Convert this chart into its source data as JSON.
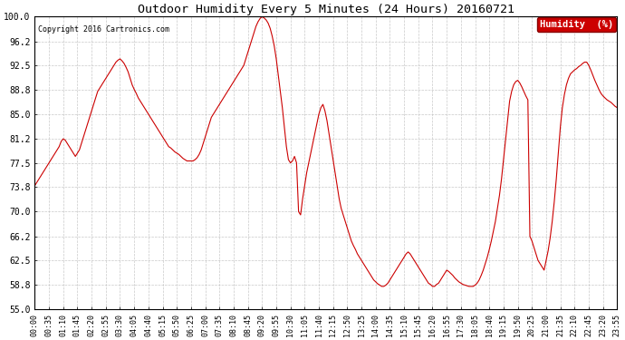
{
  "title": "Outdoor Humidity Every 5 Minutes (24 Hours) 20160721",
  "copyright": "Copyright 2016 Cartronics.com",
  "ylim": [
    55.0,
    100.0
  ],
  "yticks": [
    55.0,
    58.8,
    62.5,
    66.2,
    70.0,
    73.8,
    77.5,
    81.2,
    85.0,
    88.8,
    92.5,
    96.2,
    100.0
  ],
  "line_color": "#cc0000",
  "background_color": "#ffffff",
  "grid_color": "#bbbbbb",
  "legend_bg": "#cc0000",
  "legend_text": "Humidity  (%)",
  "humidity_data": [
    74.0,
    74.5,
    75.0,
    75.5,
    76.0,
    76.5,
    77.0,
    77.5,
    78.0,
    78.5,
    79.0,
    79.5,
    80.0,
    80.8,
    81.2,
    81.0,
    80.5,
    80.0,
    79.5,
    79.0,
    78.5,
    79.0,
    79.5,
    80.5,
    81.5,
    82.5,
    83.5,
    84.5,
    85.5,
    86.5,
    87.5,
    88.5,
    89.0,
    89.5,
    90.0,
    90.5,
    91.0,
    91.5,
    92.0,
    92.5,
    93.0,
    93.3,
    93.5,
    93.2,
    92.8,
    92.2,
    91.5,
    90.5,
    89.5,
    88.8,
    88.2,
    87.5,
    87.0,
    86.5,
    86.0,
    85.5,
    85.0,
    84.5,
    84.0,
    83.5,
    83.0,
    82.5,
    82.0,
    81.5,
    81.0,
    80.5,
    80.0,
    79.8,
    79.5,
    79.2,
    79.0,
    78.8,
    78.5,
    78.2,
    78.0,
    77.8,
    77.8,
    77.8,
    77.8,
    78.0,
    78.3,
    78.8,
    79.5,
    80.5,
    81.5,
    82.5,
    83.5,
    84.5,
    85.0,
    85.5,
    86.0,
    86.5,
    87.0,
    87.5,
    88.0,
    88.5,
    89.0,
    89.5,
    90.0,
    90.5,
    91.0,
    91.5,
    92.0,
    92.5,
    93.5,
    94.5,
    95.5,
    96.5,
    97.5,
    98.5,
    99.2,
    99.7,
    100.0,
    99.8,
    99.5,
    99.0,
    98.2,
    97.0,
    95.5,
    93.5,
    91.0,
    88.5,
    86.0,
    83.0,
    80.0,
    78.0,
    77.5,
    77.8,
    78.5,
    77.5,
    70.0,
    69.5,
    72.0,
    74.0,
    76.0,
    77.5,
    79.0,
    80.5,
    82.0,
    83.5,
    85.0,
    86.0,
    86.5,
    85.5,
    84.0,
    82.0,
    80.0,
    78.0,
    76.0,
    74.0,
    72.0,
    70.5,
    69.5,
    68.5,
    67.5,
    66.5,
    65.5,
    64.8,
    64.2,
    63.5,
    63.0,
    62.5,
    62.0,
    61.5,
    61.0,
    60.5,
    60.0,
    59.5,
    59.2,
    58.9,
    58.7,
    58.5,
    58.5,
    58.7,
    59.0,
    59.5,
    60.0,
    60.5,
    61.0,
    61.5,
    62.0,
    62.5,
    63.0,
    63.5,
    63.8,
    63.5,
    63.0,
    62.5,
    62.0,
    61.5,
    61.0,
    60.5,
    60.0,
    59.5,
    59.0,
    58.8,
    58.5,
    58.5,
    58.8,
    59.0,
    59.5,
    60.0,
    60.5,
    61.0,
    60.8,
    60.5,
    60.2,
    59.8,
    59.5,
    59.2,
    59.0,
    58.8,
    58.7,
    58.6,
    58.5,
    58.5,
    58.5,
    58.7,
    59.0,
    59.5,
    60.2,
    61.0,
    62.0,
    63.0,
    64.2,
    65.5,
    67.0,
    68.5,
    70.5,
    72.5,
    75.0,
    78.0,
    81.0,
    84.0,
    87.0,
    88.5,
    89.5,
    90.0,
    90.2,
    89.8,
    89.2,
    88.5,
    87.8,
    87.2,
    66.2,
    65.5,
    64.5,
    63.5,
    62.5,
    62.0,
    61.5,
    61.0,
    62.5,
    64.0,
    66.0,
    68.5,
    71.5,
    75.0,
    79.0,
    83.0,
    86.0,
    88.0,
    89.5,
    90.5,
    91.2,
    91.5,
    91.8,
    92.0,
    92.3,
    92.5,
    92.8,
    93.0,
    93.0,
    92.5,
    91.8,
    91.0,
    90.2,
    89.5,
    88.8,
    88.2,
    87.8,
    87.5,
    87.2,
    87.0,
    86.8,
    86.5,
    86.2,
    86.0,
    85.8,
    85.5,
    85.2,
    85.0,
    85.2,
    85.5,
    85.8,
    86.0,
    86.2
  ],
  "x_tick_labels": [
    "00:00",
    "00:35",
    "01:10",
    "01:45",
    "02:20",
    "02:55",
    "03:30",
    "04:05",
    "04:40",
    "05:15",
    "05:50",
    "06:25",
    "07:00",
    "07:35",
    "08:10",
    "08:45",
    "09:20",
    "09:55",
    "10:30",
    "11:05",
    "11:40",
    "12:15",
    "12:50",
    "13:25",
    "14:00",
    "14:35",
    "15:10",
    "15:45",
    "16:20",
    "16:55",
    "17:30",
    "18:05",
    "18:40",
    "19:15",
    "19:50",
    "20:25",
    "21:00",
    "21:35",
    "22:10",
    "22:45",
    "23:20",
    "23:55"
  ],
  "x_tick_positions": [
    0,
    7,
    14,
    21,
    28,
    35,
    42,
    49,
    56,
    63,
    70,
    77,
    84,
    91,
    98,
    105,
    112,
    119,
    126,
    133,
    140,
    147,
    154,
    161,
    168,
    175,
    182,
    189,
    196,
    203,
    210,
    217,
    224,
    231,
    238,
    245,
    252,
    259,
    266,
    273,
    280,
    287
  ]
}
